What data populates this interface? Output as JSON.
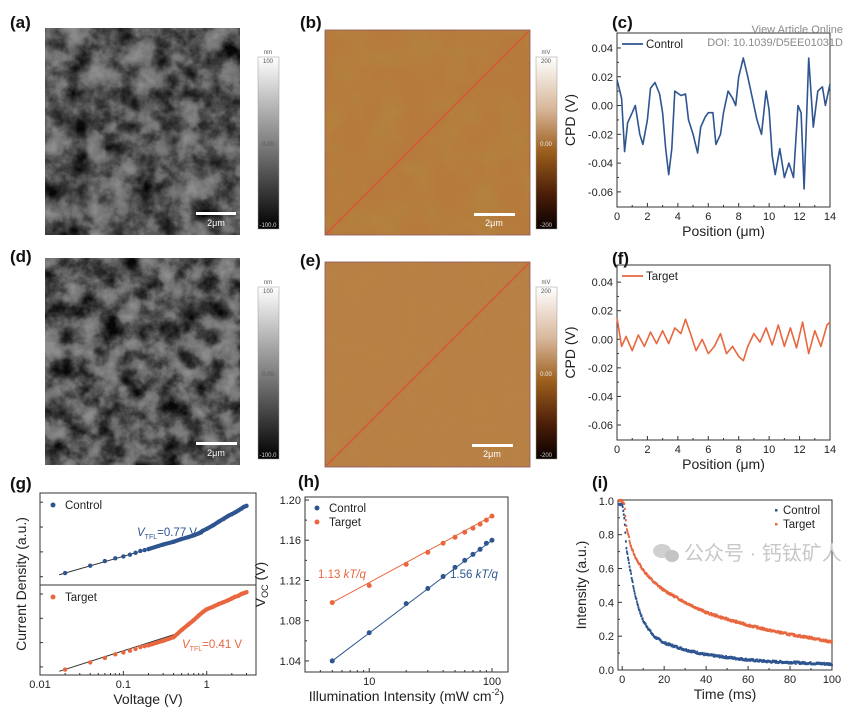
{
  "colors": {
    "control": "#2e5590",
    "target": "#e8673f",
    "fit": "#333333",
    "scan_line": "#d9533a"
  },
  "watermark": {
    "line1": "View Article Online",
    "line2": "DOI: 10.1039/D5EE01031D",
    "wechat": "公众号 · 钙钛矿人"
  },
  "panels": {
    "a": {
      "label": "(a)",
      "unit": "nm",
      "cb_top": "100",
      "cb_mid": "0.00",
      "cb_bot": "-100.0",
      "scalebar": "2μm"
    },
    "b": {
      "label": "(b)",
      "unit": "mV",
      "cb_top": "200",
      "cb_mid": "0.00",
      "cb_bot": "-200",
      "scalebar": "2μm"
    },
    "d": {
      "label": "(d)",
      "unit": "nm",
      "cb_top": "100",
      "cb_mid": "0.00",
      "cb_bot": "-100.0",
      "scalebar": "2μm"
    },
    "e": {
      "label": "(e)",
      "unit": "mV",
      "cb_top": "200",
      "cb_mid": "0.00",
      "cb_bot": "-200",
      "scalebar": "2μm"
    }
  },
  "chart_data": {
    "c": {
      "type": "line",
      "label": "(c)",
      "xlabel": "Position (μm)",
      "ylabel": "CPD (V)",
      "xlim": [
        0,
        14
      ],
      "ylim": [
        -0.0705,
        0.0504
      ],
      "xticks": [
        0,
        2,
        4,
        6,
        8,
        10,
        12,
        14
      ],
      "xtick_labels": [
        "0",
        "2",
        "4",
        "6",
        "8",
        "10",
        "12",
        "14"
      ],
      "yticks": [
        -0.06,
        -0.04,
        -0.02,
        0,
        0.02,
        0.04
      ],
      "ytick_labels": [
        "-0.06",
        "-0.04",
        "-0.02",
        "0.00",
        "0.02",
        "0.04"
      ],
      "legend": "top-left",
      "series": [
        {
          "name": "Control",
          "x": [
            0,
            0.3,
            0.5,
            0.7,
            1.0,
            1.2,
            1.5,
            1.7,
            2.0,
            2.2,
            2.5,
            2.8,
            3.0,
            3.2,
            3.4,
            3.6,
            3.8,
            4.2,
            4.5,
            4.7,
            5.0,
            5.3,
            5.5,
            5.8,
            6.0,
            6.3,
            6.5,
            6.8,
            7.0,
            7.3,
            7.6,
            7.8,
            8.0,
            8.3,
            8.6,
            8.9,
            9.2,
            9.5,
            9.8,
            10.0,
            10.2,
            10.4,
            10.7,
            11.0,
            11.3,
            11.6,
            11.9,
            12.1,
            12.3,
            12.6,
            12.9,
            13.2,
            13.5,
            13.7,
            14.0
          ],
          "y": [
            0.018,
            0.005,
            -0.032,
            -0.012,
            -0.005,
            0.0,
            -0.02,
            -0.027,
            -0.01,
            0.012,
            0.016,
            0.008,
            -0.005,
            -0.03,
            -0.048,
            -0.03,
            0.01,
            0.007,
            0.008,
            -0.01,
            -0.02,
            -0.033,
            -0.015,
            -0.008,
            -0.005,
            -0.005,
            -0.027,
            -0.02,
            -0.005,
            0.01,
            0.005,
            0.0,
            0.02,
            0.033,
            0.02,
            0.005,
            -0.01,
            -0.02,
            0.01,
            -0.003,
            -0.035,
            -0.048,
            -0.03,
            -0.05,
            -0.04,
            -0.05,
            0.0,
            -0.005,
            -0.058,
            0.033,
            -0.015,
            0.01,
            0.013,
            0.0,
            0.015
          ]
        }
      ]
    },
    "f": {
      "type": "line",
      "label": "(f)",
      "xlabel": "Position (μm)",
      "ylabel": "CPD (V)",
      "xlim": [
        0,
        14
      ],
      "ylim": [
        -0.0705,
        0.052
      ],
      "xticks": [
        0,
        2,
        4,
        6,
        8,
        10,
        12,
        14
      ],
      "xtick_labels": [
        "0",
        "2",
        "4",
        "6",
        "8",
        "10",
        "12",
        "14"
      ],
      "yticks": [
        -0.06,
        -0.04,
        -0.02,
        0,
        0.02,
        0.04
      ],
      "ytick_labels": [
        "-0.06",
        "-0.04",
        "-0.02",
        "0.00",
        "0.02",
        "0.04"
      ],
      "legend": "top-left",
      "series": [
        {
          "name": "Target",
          "x": [
            0,
            0.3,
            0.6,
            1.0,
            1.4,
            1.8,
            2.2,
            2.6,
            3.0,
            3.4,
            3.8,
            4.2,
            4.5,
            4.8,
            5.2,
            5.6,
            6.0,
            6.4,
            6.8,
            7.2,
            7.6,
            8.0,
            8.3,
            8.6,
            9.0,
            9.4,
            9.8,
            10.2,
            10.6,
            11.0,
            11.4,
            11.8,
            12.2,
            12.6,
            13.0,
            13.4,
            13.8,
            14.0
          ],
          "y": [
            0.015,
            -0.005,
            0.002,
            -0.008,
            0.003,
            -0.005,
            0.005,
            -0.003,
            0.006,
            -0.003,
            0.008,
            0.004,
            0.014,
            0.005,
            -0.008,
            0.0,
            -0.01,
            -0.005,
            0.004,
            -0.01,
            -0.005,
            -0.012,
            -0.015,
            -0.005,
            0.004,
            -0.002,
            0.008,
            -0.004,
            0.01,
            -0.005,
            0.008,
            -0.006,
            0.012,
            -0.01,
            0.006,
            -0.005,
            0.01,
            0.012
          ]
        }
      ]
    },
    "g": {
      "type": "scatter",
      "label": "(g)",
      "xlabel": "Voltage (V)",
      "ylabel": "Current Density (a.u.)",
      "xscale": "log",
      "xlim": [
        0.01,
        3.9
      ],
      "ylim": [
        0,
        1
      ],
      "xticks": [
        0.01,
        0.1,
        1
      ],
      "xtick_labels": [
        "0.01",
        "0.1",
        "1"
      ],
      "legend": "top-left",
      "series": [
        {
          "name": "Control",
          "annotation": {
            "v": "V",
            "sub": "TFL",
            "text": "=0.77 V"
          },
          "x": [
            0.02,
            0.04,
            0.06,
            0.08,
            0.1,
            0.12,
            0.14,
            0.16,
            0.18,
            0.2,
            0.3,
            0.4,
            0.5,
            0.6,
            0.7,
            0.8,
            0.9,
            1.0,
            1.2,
            1.4,
            1.6,
            1.8,
            2.0,
            2.2,
            2.4,
            2.6,
            2.8,
            3.0
          ],
          "y": [
            0.13,
            0.21,
            0.26,
            0.29,
            0.31,
            0.33,
            0.35,
            0.37,
            0.38,
            0.39,
            0.44,
            0.47,
            0.5,
            0.52,
            0.54,
            0.56,
            0.59,
            0.61,
            0.65,
            0.69,
            0.72,
            0.75,
            0.77,
            0.79,
            0.81,
            0.83,
            0.85,
            0.86
          ]
        },
        {
          "name": "Target",
          "annotation": {
            "v": "V",
            "sub": "TFL",
            "text": "=0.41 V"
          },
          "x": [
            0.02,
            0.04,
            0.06,
            0.08,
            0.1,
            0.12,
            0.14,
            0.16,
            0.18,
            0.2,
            0.3,
            0.4,
            0.5,
            0.6,
            0.7,
            0.8,
            0.9,
            1.0,
            1.2,
            1.4,
            1.6,
            1.8,
            2.0,
            2.2,
            2.4,
            2.6,
            2.8,
            3.0
          ],
          "y": [
            0.06,
            0.14,
            0.19,
            0.23,
            0.25,
            0.27,
            0.29,
            0.31,
            0.32,
            0.33,
            0.38,
            0.42,
            0.5,
            0.56,
            0.61,
            0.66,
            0.7,
            0.73,
            0.76,
            0.79,
            0.81,
            0.83,
            0.85,
            0.87,
            0.88,
            0.9,
            0.91,
            0.92
          ]
        }
      ]
    },
    "h": {
      "type": "scatter",
      "label": "(h)",
      "xlabel": "Illumination Intensity (mW cm",
      "xlabel_sup": "-2",
      "xlabel_end": ")",
      "ylabel": "V",
      "ylabel_sub": "OC",
      "ylabel_end": " (V)",
      "xscale": "log",
      "xlim": [
        3,
        135
      ],
      "ylim": [
        1.029,
        1.203
      ],
      "xticks": [
        10,
        100
      ],
      "xtick_labels": [
        "10",
        "100"
      ],
      "yticks": [
        1.04,
        1.08,
        1.12,
        1.16,
        1.2
      ],
      "ytick_labels": [
        "1.04",
        "1.08",
        "1.12",
        "1.16",
        "1.20"
      ],
      "legend": "top-left",
      "series": [
        {
          "name": "Control",
          "slope_num": "1.56 ",
          "slope_unit": "kT/q",
          "x": [
            5,
            10,
            20,
            30,
            40,
            50,
            60,
            70,
            80,
            90,
            100
          ],
          "y": [
            1.04,
            1.068,
            1.097,
            1.112,
            1.124,
            1.133,
            1.14,
            1.146,
            1.151,
            1.157,
            1.16
          ]
        },
        {
          "name": "Target",
          "slope_num": "1.13 ",
          "slope_unit": "kT/q",
          "x": [
            5,
            10,
            20,
            30,
            40,
            50,
            60,
            70,
            80,
            90,
            100
          ],
          "y": [
            1.098,
            1.115,
            1.136,
            1.148,
            1.157,
            1.163,
            1.168,
            1.172,
            1.176,
            1.18,
            1.184
          ]
        }
      ]
    },
    "i": {
      "type": "scatter",
      "label": "(i)",
      "xlabel": "Time (ms)",
      "ylabel": "Intensity (a.u.)",
      "xlim": [
        -2,
        100
      ],
      "ylim": [
        0,
        1.005
      ],
      "xticks": [
        0,
        20,
        40,
        60,
        80,
        100
      ],
      "xtick_labels": [
        "0",
        "20",
        "40",
        "60",
        "80",
        "100"
      ],
      "yticks": [
        0,
        0.2,
        0.4,
        0.6,
        0.8,
        1.0
      ],
      "ytick_labels": [
        "0.0",
        "0.2",
        "0.4",
        "0.6",
        "0.8",
        "1.0"
      ],
      "legend": "top-right",
      "series": [
        {
          "name": "Control",
          "x": [
            -2,
            0,
            1,
            2,
            4,
            6,
            8,
            10,
            15,
            20,
            30,
            40,
            50,
            60,
            70,
            80,
            90,
            100
          ],
          "y": [
            0.98,
            0.98,
            0.9,
            0.72,
            0.58,
            0.45,
            0.36,
            0.29,
            0.2,
            0.16,
            0.12,
            0.09,
            0.075,
            0.06,
            0.05,
            0.045,
            0.04,
            0.035
          ]
        },
        {
          "name": "Target",
          "x": [
            -2,
            0,
            1,
            2,
            4,
            6,
            10,
            15,
            20,
            30,
            40,
            50,
            60,
            70,
            80,
            90,
            100
          ],
          "y": [
            1.0,
            1.0,
            0.98,
            0.85,
            0.74,
            0.67,
            0.59,
            0.52,
            0.47,
            0.4,
            0.34,
            0.3,
            0.265,
            0.235,
            0.21,
            0.19,
            0.165
          ]
        }
      ]
    }
  }
}
